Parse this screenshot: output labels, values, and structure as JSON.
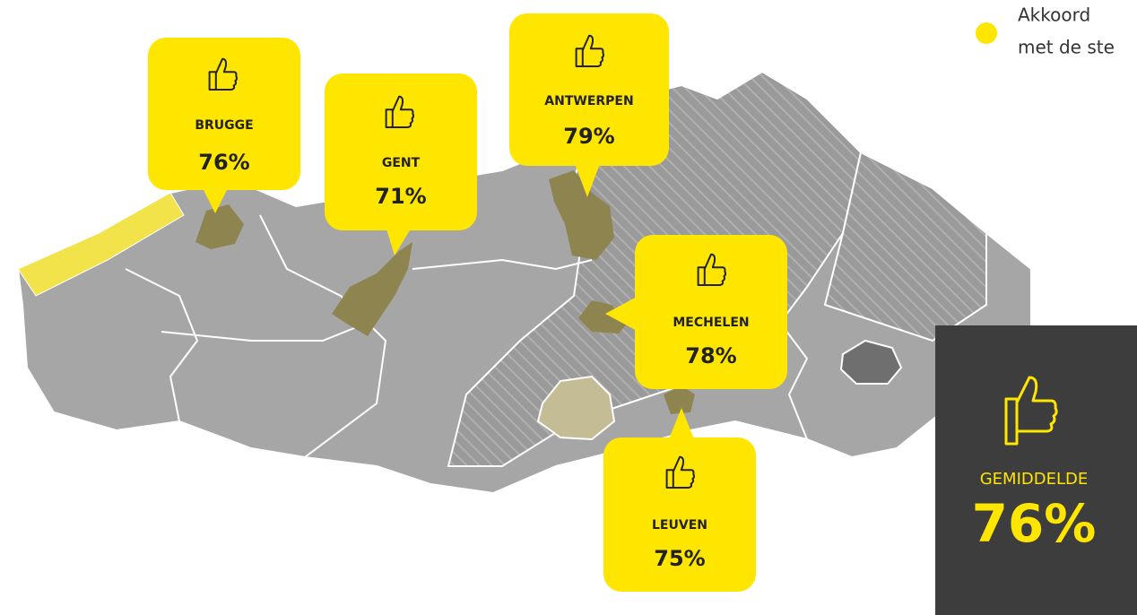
{
  "legend": {
    "lines": [
      "Akkoord",
      "met de ste"
    ]
  },
  "cities": [
    {
      "name": "BRUGGE",
      "value": "76%"
    },
    {
      "name": "GENT",
      "value": "71%"
    },
    {
      "name": "ANTWERPEN",
      "value": "79%"
    },
    {
      "name": "MECHELEN",
      "value": "78%"
    },
    {
      "name": "LEUVEN",
      "value": "75%"
    }
  ],
  "average": {
    "label": "GEMIDDELDE",
    "value": "76%"
  }
}
